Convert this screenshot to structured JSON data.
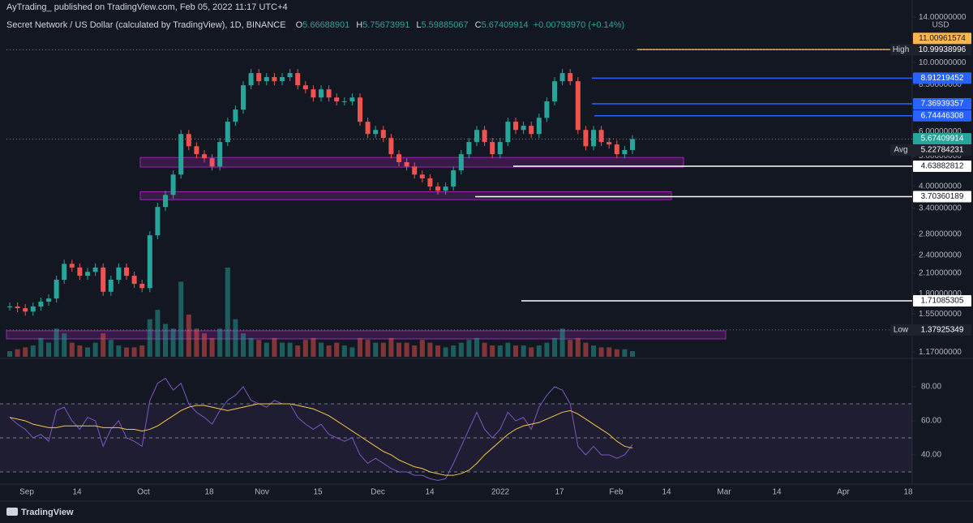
{
  "header": {
    "publisher": "AyTrading_  published on TradingView.com, Feb 05, 2022 11:17 UTC+4",
    "symbol": "Secret Network / US Dollar (calculated by TradingView), 1D, BINANCE",
    "ohlc": [
      {
        "key": "O",
        "value": 5.66688901
      },
      {
        "key": "H",
        "value": 5.75673991
      },
      {
        "key": "L",
        "value": 5.59885067
      },
      {
        "key": "C",
        "value": 5.67409914
      }
    ],
    "change": "+0.00793970 (+0.14%)"
  },
  "footer": "TradingView",
  "chart_data": [
    {
      "type": "candlestick",
      "y_unit": "USD",
      "log_scale": true,
      "up_color": "#26a69a",
      "down_color": "#ef5350",
      "values": [
        1.64,
        1.62,
        1.58,
        1.64,
        1.7,
        1.74,
        2.0,
        2.25,
        2.19,
        2.06,
        2.12,
        2.19,
        1.83,
        2.0,
        2.19,
        2.06,
        1.94,
        1.88,
        2.78,
        3.43,
        3.75,
        4.36,
        5.89,
        5.38,
        5.07,
        4.92,
        4.63,
        5.55,
        6.45,
        7.06,
        8.45,
        9.25,
        8.71,
        8.98,
        8.71,
        8.98,
        9.25,
        8.45,
        8.2,
        7.72,
        8.2,
        7.72,
        7.5,
        7.5,
        7.72,
        6.45,
        5.89,
        6.07,
        5.72,
        5.07,
        4.78,
        4.63,
        4.36,
        4.24,
        3.99,
        3.87,
        3.99,
        4.5,
        5.07,
        5.55,
        6.07,
        5.55,
        5.07,
        5.55,
        6.45,
        6.07,
        6.26,
        5.89,
        6.64,
        7.5,
        8.71,
        9.25,
        8.71,
        6.07,
        5.38,
        6.07,
        5.55,
        5.45,
        5.07,
        5.23,
        5.67409914
      ],
      "volume": [
        6,
        8,
        10,
        12,
        20,
        15,
        30,
        25,
        15,
        12,
        10,
        15,
        25,
        18,
        12,
        10,
        10,
        12,
        40,
        50,
        35,
        30,
        80,
        45,
        30,
        25,
        20,
        30,
        95,
        40,
        25,
        20,
        18,
        15,
        20,
        15,
        15,
        12,
        18,
        20,
        15,
        12,
        15,
        12,
        10,
        20,
        18,
        15,
        15,
        20,
        15,
        15,
        12,
        18,
        15,
        12,
        10,
        12,
        15,
        18,
        20,
        15,
        12,
        12,
        15,
        12,
        12,
        10,
        12,
        15,
        20,
        30,
        18,
        20,
        15,
        12,
        10,
        10,
        8,
        8,
        6
      ],
      "ylim": [
        1.13,
        15.9
      ],
      "yticks": [
        {
          "value": 14,
          "label": "14.00000000"
        },
        {
          "value": 10,
          "label": "10.00000000"
        },
        {
          "value": 8.5,
          "label": "8.50000000"
        },
        {
          "value": 6,
          "label": "6.00000000"
        },
        {
          "value": 5,
          "label": "5.00000000"
        },
        {
          "value": 4,
          "label": "4.00000000"
        },
        {
          "value": 3.4,
          "label": "3.40000000"
        },
        {
          "value": 2.8,
          "label": "2.80000000"
        },
        {
          "value": 2.4,
          "label": "2.40000000"
        },
        {
          "value": 2.1,
          "label": "2.10000000"
        },
        {
          "value": 1.8,
          "label": "1.80000000"
        },
        {
          "value": 1.55,
          "label": "1.55000000"
        },
        {
          "value": 1.17,
          "label": "1.17000000"
        }
      ],
      "price_labels": [
        {
          "value": 11.00961574,
          "color": "#ffb74d"
        },
        {
          "value": 10.99938996,
          "color": "#1e222d",
          "tag": "High"
        },
        {
          "value": 8.91219452,
          "color": "#2962ff"
        },
        {
          "value": 7.36939357,
          "color": "#2962ff"
        },
        {
          "value": 6.74446308,
          "color": "#2962ff"
        },
        {
          "value": 5.67409914,
          "color": "#26a69a"
        },
        {
          "value": 5.22784231,
          "color": "#1e222d",
          "tag": "Avg"
        },
        {
          "value": 4.63882812,
          "color": "#ffffff"
        },
        {
          "value": 3.70360189,
          "color": "#ffffff"
        },
        {
          "value": 1.71085305,
          "color": "#ffffff"
        },
        {
          "value": 1.37925349,
          "color": "#1e222d",
          "tag": "Low"
        }
      ],
      "zones": [
        {
          "from": 4.61,
          "to": 4.95
        },
        {
          "from": 3.62,
          "to": 3.84
        },
        {
          "from": 1.29,
          "to": 1.37
        }
      ]
    },
    {
      "type": "line",
      "ylim": [
        23.8,
        95.2
      ],
      "yticks": [
        {
          "value": 80,
          "label": "80.00"
        },
        {
          "value": 60,
          "label": "60.00"
        },
        {
          "value": 40,
          "label": "40.00"
        }
      ],
      "levels": [
        30,
        50,
        70
      ],
      "x_labels": [
        "Sep",
        "14",
        "Oct",
        "18",
        "Nov",
        "15",
        "Dec",
        "14",
        "2022",
        "17",
        "Feb",
        "14",
        "Mar",
        "14",
        "Apr",
        "18"
      ],
      "series": [
        {
          "color": "#7e57c2",
          "values": [
            62,
            58,
            55,
            50,
            52,
            48,
            66,
            68,
            60,
            55,
            62,
            60,
            45,
            55,
            60,
            50,
            48,
            45,
            72,
            82,
            85,
            78,
            82,
            70,
            65,
            62,
            58,
            66,
            72,
            75,
            80,
            72,
            70,
            68,
            72,
            70,
            70,
            62,
            58,
            55,
            58,
            52,
            50,
            48,
            50,
            40,
            35,
            38,
            35,
            32,
            30,
            30,
            28,
            28,
            26,
            25,
            26,
            35,
            45,
            55,
            65,
            55,
            50,
            55,
            65,
            60,
            62,
            55,
            68,
            75,
            80,
            78,
            70,
            45,
            40,
            45,
            40,
            40,
            38,
            40,
            46
          ]
        },
        {
          "color": "#f7c548",
          "values": [
            62,
            61,
            60,
            58,
            57,
            56,
            56,
            57,
            57,
            57,
            57,
            57,
            56,
            56,
            56,
            55,
            55,
            54,
            55,
            57,
            60,
            63,
            66,
            68,
            69,
            69,
            68,
            67,
            66,
            67,
            68,
            69,
            70,
            70,
            70,
            70,
            70,
            69,
            68,
            67,
            65,
            63,
            60,
            57,
            54,
            51,
            48,
            45,
            42,
            40,
            37,
            35,
            33,
            32,
            30,
            29,
            28,
            28,
            29,
            31,
            35,
            40,
            44,
            48,
            52,
            55,
            57,
            58,
            59,
            61,
            63,
            65,
            66,
            64,
            61,
            58,
            55,
            52,
            48,
            45,
            44
          ]
        }
      ]
    }
  ]
}
